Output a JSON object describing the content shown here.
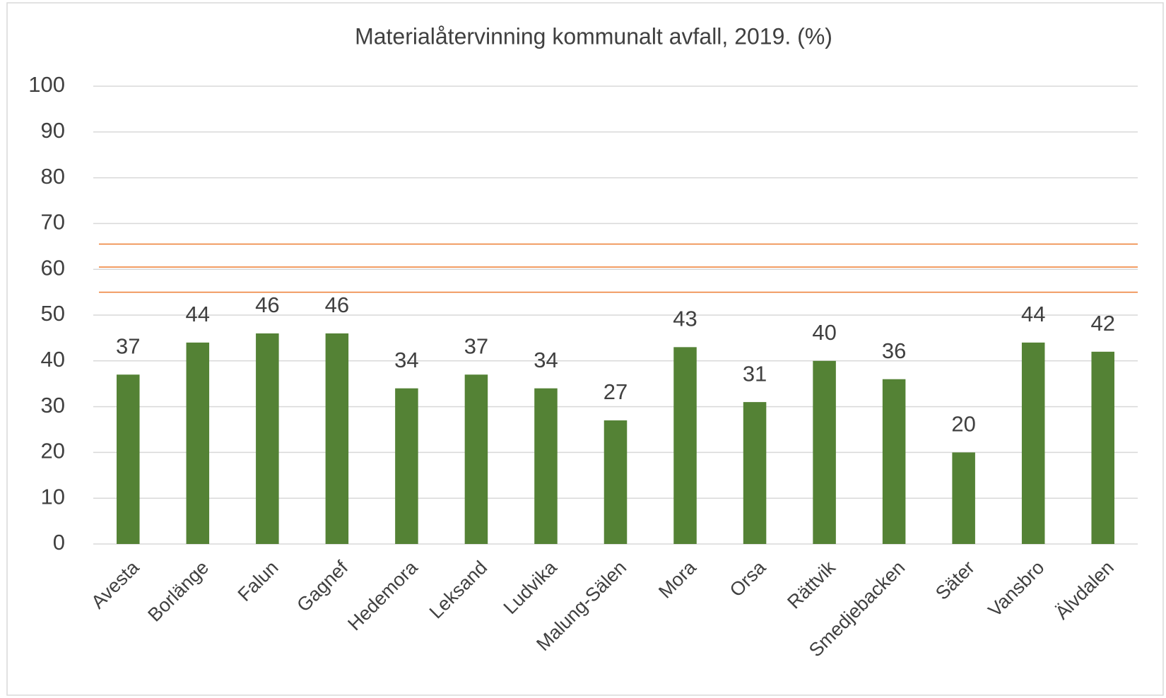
{
  "chart_data": {
    "type": "bar",
    "title": "Materialåtervinning  kommunalt  avfall, 2019. (%)",
    "categories": [
      "Avesta",
      "Borlänge",
      "Falun",
      "Gagnef",
      "Hedemora",
      "Leksand",
      "Ludvika",
      "Malung-Sälen",
      "Mora",
      "Orsa",
      "Rättvik",
      "Smedjebacken",
      "Säter",
      "Vansbro",
      "Älvdalen"
    ],
    "values": [
      37,
      44,
      46,
      46,
      34,
      37,
      34,
      27,
      43,
      31,
      40,
      36,
      20,
      44,
      42
    ],
    "color": "#548235",
    "ylim": [
      0,
      100
    ],
    "yticks": [
      0,
      10,
      20,
      30,
      40,
      50,
      60,
      70,
      80,
      90,
      100
    ],
    "grid": true,
    "reference_lines": {
      "values": [
        55,
        60.5,
        65.5
      ],
      "color": "#ed7d31"
    }
  }
}
